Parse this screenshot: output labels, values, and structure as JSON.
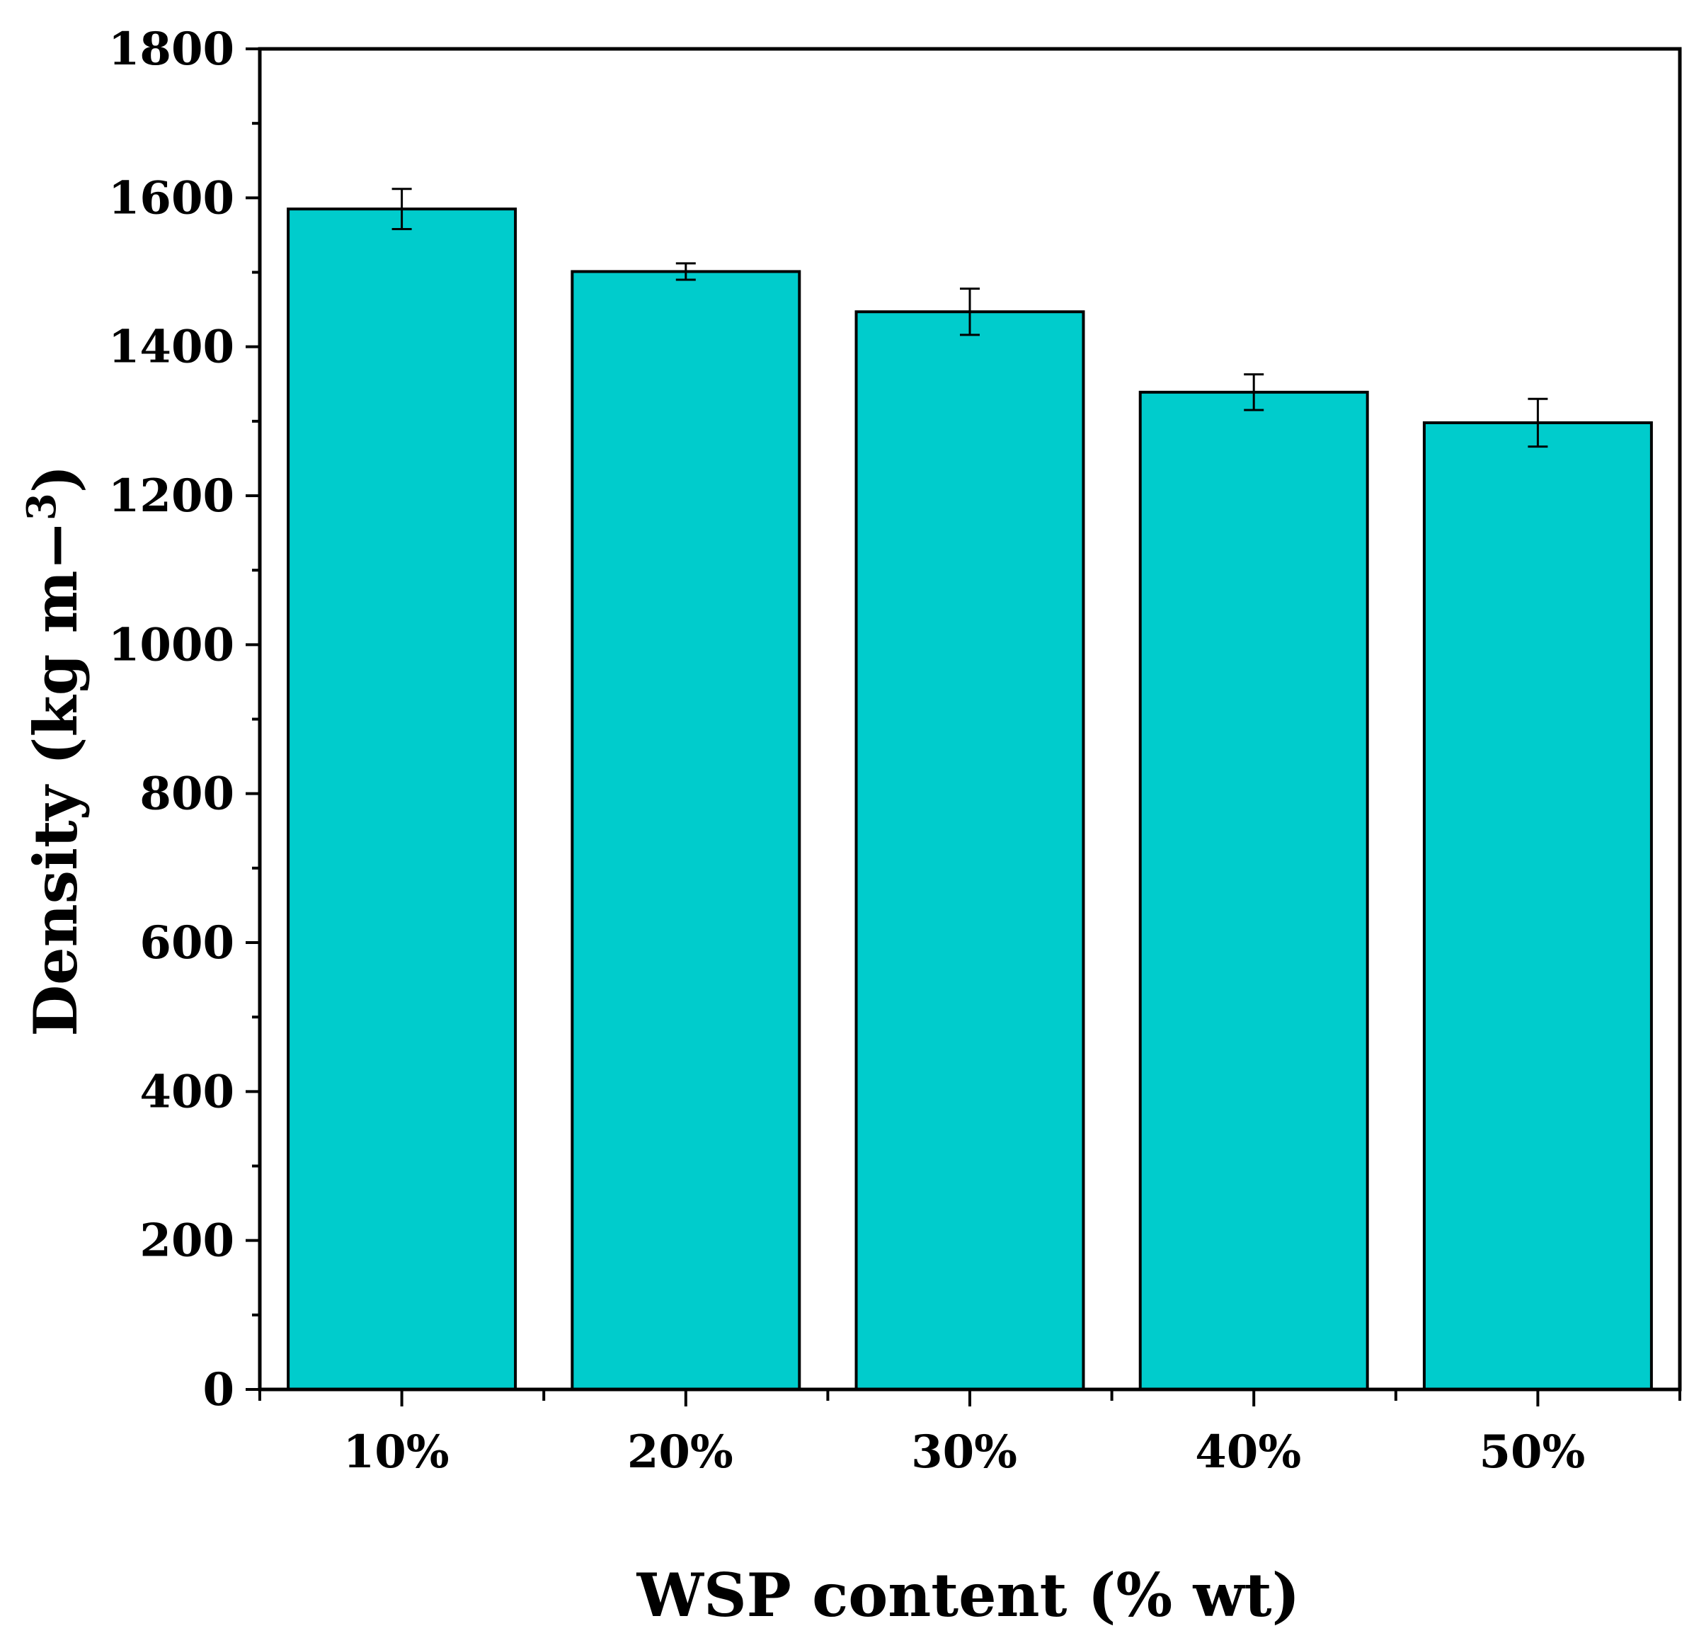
{
  "chart_data": {
    "type": "bar",
    "categories": [
      "10%",
      "20%",
      "30%",
      "40%",
      "50%"
    ],
    "values": [
      1585,
      1501,
      1447,
      1339,
      1298
    ],
    "error": [
      27,
      11,
      31,
      24,
      32
    ],
    "xlabel": "WSP content (% wt)",
    "ylabel": "Density (kg m−3)",
    "ylim": [
      0,
      1800
    ],
    "yticks": [
      0,
      200,
      400,
      600,
      800,
      1000,
      1200,
      1400,
      1600,
      1800
    ],
    "grid": false,
    "bar_color": "#00cccc",
    "edge_color": "#000000"
  }
}
